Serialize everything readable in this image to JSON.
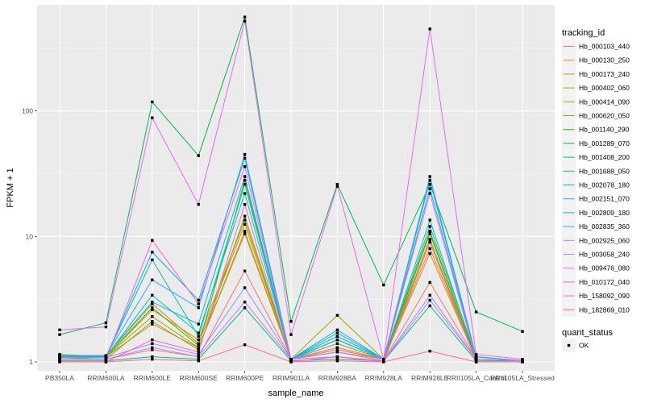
{
  "chart_data": {
    "type": "line",
    "xlabel": "sample_name",
    "ylabel": "FPKM + 1",
    "y_scale": "log10",
    "ylim": [
      0.85,
      700
    ],
    "y_ticks": [
      1,
      10,
      100
    ],
    "y_tick_labels": [
      "1",
      "10",
      "100"
    ],
    "grid": true,
    "legend_position": "right",
    "categories": [
      "PB350LA",
      "RRIM600LA",
      "RRIM600LE",
      "RRIM600SE",
      "RRIM600PE",
      "RRIM901LA",
      "RRIM928BA",
      "RRIM928LA",
      "RRIM928LE",
      "RRII105LA_Control",
      "RRII105LA_Stressed"
    ],
    "series_legend_title": "tracking_id",
    "series": [
      {
        "name": "Hb_000103_440",
        "color": "#F8766D",
        "values": [
          1.05,
          1.05,
          1.25,
          1.1,
          5.3,
          1.05,
          1.1,
          1.02,
          4.3,
          1.05,
          1.02
        ]
      },
      {
        "name": "Hb_000130_250",
        "color": "#EA8331",
        "values": [
          1.1,
          1.1,
          2.0,
          1.3,
          11.0,
          1.05,
          1.2,
          1.05,
          7.3,
          1.05,
          1.02
        ]
      },
      {
        "name": "Hb_000173_240",
        "color": "#D89000",
        "values": [
          1.12,
          1.12,
          2.9,
          1.4,
          12.5,
          1.05,
          1.25,
          1.05,
          8.0,
          1.05,
          1.02
        ]
      },
      {
        "name": "Hb_000402_060",
        "color": "#C09B00",
        "values": [
          1.08,
          1.1,
          2.6,
          1.5,
          13.5,
          1.05,
          1.3,
          1.05,
          9.0,
          1.05,
          1.02
        ]
      },
      {
        "name": "Hb_000414_090",
        "color": "#A3A500",
        "values": [
          1.15,
          1.1,
          2.3,
          1.3,
          10.5,
          1.05,
          2.35,
          1.05,
          9.5,
          1.05,
          1.02
        ]
      },
      {
        "name": "Hb_000620_050",
        "color": "#7CAE00",
        "values": [
          1.08,
          1.05,
          2.1,
          1.25,
          14.5,
          1.05,
          1.4,
          1.05,
          10.5,
          1.05,
          1.02
        ]
      },
      {
        "name": "Hb_001140_290",
        "color": "#39B600",
        "values": [
          1.1,
          1.1,
          2.7,
          1.35,
          28.0,
          1.05,
          1.5,
          1.05,
          11.0,
          1.05,
          1.02
        ]
      },
      {
        "name": "Hb_001289_070",
        "color": "#00BB4E",
        "values": [
          1.65,
          2.05,
          118.0,
          44.0,
          560.0,
          2.1,
          26.0,
          4.1,
          26.0,
          2.5,
          1.75
        ]
      },
      {
        "name": "Hb_001408_200",
        "color": "#00BF7D",
        "values": [
          1.02,
          1.02,
          1.1,
          1.05,
          2.7,
          1.02,
          1.05,
          1.02,
          2.8,
          1.02,
          1.02
        ]
      },
      {
        "name": "Hb_001688_050",
        "color": "#00C1A3",
        "values": [
          1.1,
          1.1,
          6.5,
          1.6,
          26.0,
          1.05,
          1.6,
          1.05,
          12.0,
          1.1,
          1.02
        ]
      },
      {
        "name": "Hb_002078_180",
        "color": "#00BFC4",
        "values": [
          1.1,
          1.1,
          3.4,
          1.7,
          22.0,
          1.05,
          1.7,
          1.05,
          13.5,
          1.05,
          1.02
        ]
      },
      {
        "name": "Hb_002151_070",
        "color": "#00BAE0",
        "values": [
          1.12,
          1.12,
          3.0,
          2.0,
          30.0,
          1.05,
          1.8,
          1.05,
          24.0,
          1.1,
          1.02
        ]
      },
      {
        "name": "Hb_002809_180",
        "color": "#00B0F6",
        "values": [
          1.1,
          1.1,
          7.5,
          3.1,
          42.0,
          1.05,
          1.5,
          1.05,
          28.0,
          1.1,
          1.02
        ]
      },
      {
        "name": "Hb_002835_360",
        "color": "#35A2FF",
        "values": [
          1.12,
          1.12,
          4.5,
          2.7,
          45.0,
          1.05,
          1.6,
          1.05,
          30.0,
          1.1,
          1.02
        ]
      },
      {
        "name": "Hb_002925_060",
        "color": "#9590FF",
        "values": [
          1.08,
          1.08,
          1.4,
          1.15,
          3.9,
          1.05,
          1.2,
          1.02,
          3.4,
          1.05,
          1.02
        ]
      },
      {
        "name": "Hb_003058_240",
        "color": "#C77CFF",
        "values": [
          1.05,
          1.05,
          1.3,
          1.1,
          3.0,
          1.05,
          1.1,
          1.02,
          3.1,
          1.05,
          1.02
        ]
      },
      {
        "name": "Hb_009476_080",
        "color": "#E76BF3",
        "values": [
          1.8,
          1.9,
          88.0,
          18.0,
          520.0,
          1.65,
          25.0,
          1.05,
          450.0,
          1.15,
          1.05
        ]
      },
      {
        "name": "Hb_010172_040",
        "color": "#FA62DB",
        "values": [
          1.05,
          1.05,
          9.3,
          2.9,
          36.0,
          1.05,
          1.3,
          1.05,
          22.0,
          1.05,
          1.02
        ]
      },
      {
        "name": "Hb_158092_090",
        "color": "#FF62BC",
        "values": [
          1.0,
          1.0,
          1.5,
          1.2,
          18.0,
          1.0,
          1.1,
          1.0,
          9.0,
          1.0,
          1.0
        ]
      },
      {
        "name": "Hb_182869_010",
        "color": "#FF6C91",
        "values": [
          1.0,
          1.0,
          1.05,
          1.02,
          1.37,
          1.0,
          1.02,
          1.0,
          1.22,
          1.0,
          1.0
        ]
      }
    ],
    "shape_legend_title": "quant_status",
    "shape_legend_items": [
      "OK"
    ]
  }
}
